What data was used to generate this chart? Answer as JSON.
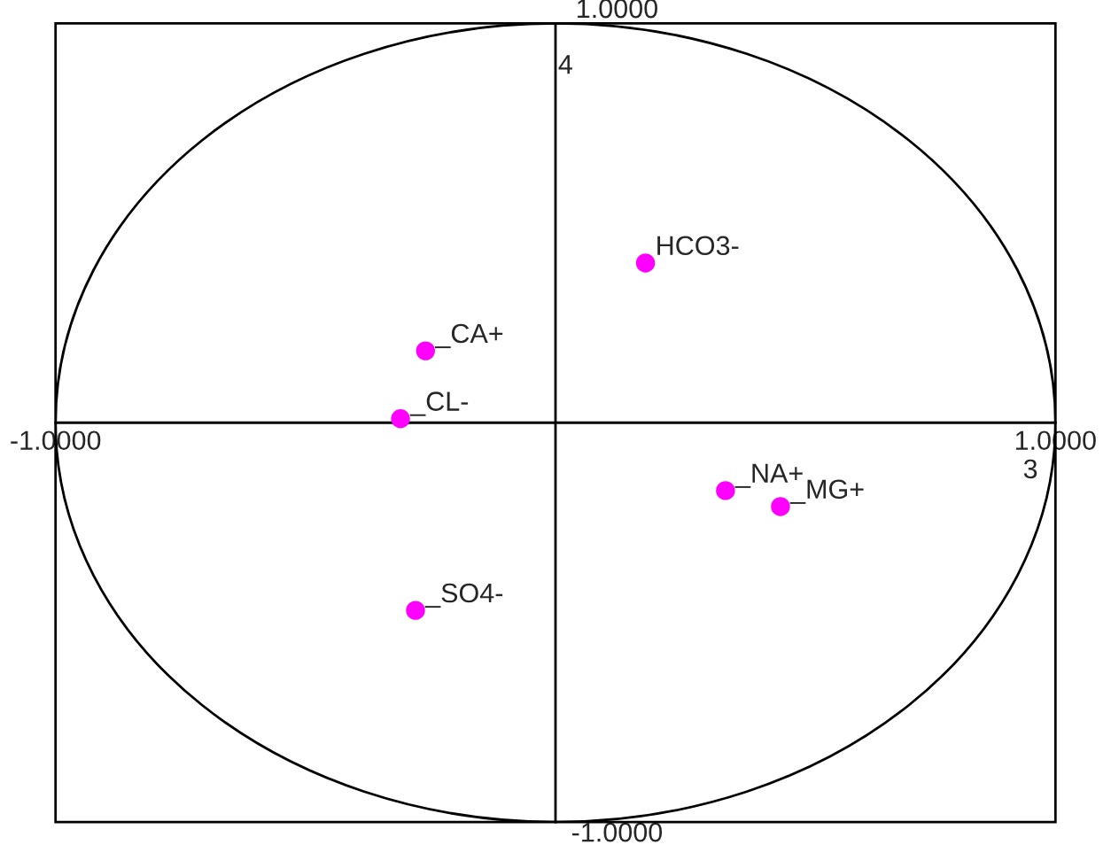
{
  "chart_data": {
    "type": "scatter",
    "xlabel": "3",
    "ylabel": "4",
    "x": [
      0.18,
      -0.26,
      -0.31,
      0.34,
      0.45,
      -0.28
    ],
    "series": [
      {
        "color": "#ff00ff",
        "values": [
          0.4,
          0.18,
          0.01,
          -0.17,
          -0.21,
          -0.47
        ]
      }
    ],
    "annotations": [
      {
        "text": "HCO3-",
        "x": 0.18,
        "y": 0.4
      },
      {
        "text": "_CA+",
        "x": -0.26,
        "y": 0.18
      },
      {
        "text": "_CL-",
        "x": -0.31,
        "y": 0.01
      },
      {
        "text": "_NA+",
        "x": 0.34,
        "y": -0.17
      },
      {
        "text": "_MG+",
        "x": 0.45,
        "y": -0.21
      },
      {
        "text": "_SO4-",
        "x": -0.28,
        "y": -0.47
      }
    ],
    "xlim": [
      -1,
      1
    ],
    "ylim": [
      -1,
      1
    ],
    "xticks": [
      {
        "value": -1,
        "label": "-1.0000"
      },
      {
        "value": 1,
        "label": "1.0000"
      }
    ],
    "yticks": [
      {
        "value": -1,
        "label": "-1.0000"
      },
      {
        "value": 1,
        "label": "1.0000"
      }
    ],
    "marker": "circle",
    "grid": false,
    "legend": false
  }
}
